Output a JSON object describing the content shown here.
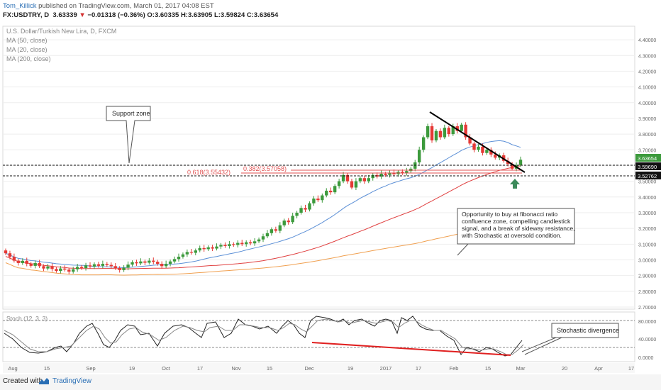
{
  "header": {
    "author": "Tom_Killick",
    "published": "published on TradingView.com, March 01, 2017 04:08 EST",
    "symbol": "FX:USDTRY, D",
    "last": "3.63339",
    "change_arrow": "▼",
    "change": "−0.01318 (−0.36%)",
    "ohlc": "O:3.60335 H:3.63905 L:3.59824 C:3.63654"
  },
  "legend": {
    "title": "U.S. Dollar/Turkish New Lira, D, FXCM",
    "items": [
      "MA (50, close)",
      "MA (20, close)",
      "MA (200, close)"
    ]
  },
  "annotations": {
    "support_zone": "Support zone",
    "fib_0618": "0.618(3.55432)",
    "fib_0382": "0.382(3.57058)",
    "opportunity": [
      "Opportunity to buy at fibonacci ratio",
      "confluence zone, compelling candlestick",
      "signal, and a break of sideway resistance,",
      "with Stochastic at oversold condition."
    ],
    "stoch_divergence": "Stochastic divergence",
    "stoch_label": "Stoch (12, 3, 3)"
  },
  "footer": {
    "created": "Created with",
    "brand": "TradingView"
  },
  "colors": {
    "up": "#3c9a3c",
    "down": "#e53935",
    "ma20": "#5b8fd6",
    "ma50": "#e04040",
    "ma200": "#f0a050",
    "stoch": "#333333",
    "divergence": "#e02020",
    "trend": "#000000"
  },
  "chart_data": {
    "type": "candlestick",
    "title": "U.S. Dollar/Turkish New Lira, D, FXCM",
    "y_ticks": [
      "2.70000",
      "2.80000",
      "2.90000",
      "3.00000",
      "3.10000",
      "3.20000",
      "3.30000",
      "3.40000",
      "3.50000",
      "3.60000",
      "3.70000",
      "3.80000",
      "3.90000",
      "4.00000",
      "4.10000",
      "4.20000",
      "4.30000",
      "4.40000"
    ],
    "ylim": [
      2.7,
      4.45
    ],
    "x_ticks": [
      "Aug",
      "15",
      "Sep",
      "19",
      "Oct",
      "17",
      "Nov",
      "15",
      "Dec",
      "19",
      "2017",
      "17",
      "Feb",
      "15",
      "Mar",
      "20",
      "Apr",
      "17"
    ],
    "price_labels": [
      {
        "value": "3.63654",
        "color": "#3c9a3c"
      },
      {
        "value": "3.59690",
        "color": "#111111"
      },
      {
        "value": "3.52762",
        "color": "#111111"
      }
    ],
    "support_levels": [
      3.5969,
      3.52762
    ],
    "fib_levels": [
      3.55432,
      3.57058
    ],
    "candles": [
      [
        3.06,
        3.042
      ],
      [
        3.042,
        3.02
      ],
      [
        3.02,
        2.995
      ],
      [
        2.995,
        2.98
      ],
      [
        2.98,
        2.994
      ],
      [
        2.994,
        2.975
      ],
      [
        2.975,
        2.962
      ],
      [
        2.962,
        2.98
      ],
      [
        2.98,
        2.96
      ],
      [
        2.96,
        2.945
      ],
      [
        2.945,
        2.958
      ],
      [
        2.958,
        2.942
      ],
      [
        2.942,
        2.93
      ],
      [
        2.93,
        2.945
      ],
      [
        2.945,
        2.938
      ],
      [
        2.938,
        2.925
      ],
      [
        2.925,
        2.94
      ],
      [
        2.94,
        2.955
      ],
      [
        2.955,
        2.948
      ],
      [
        2.948,
        2.965
      ],
      [
        2.965,
        2.958
      ],
      [
        2.958,
        2.972
      ],
      [
        2.972,
        2.962
      ],
      [
        2.962,
        2.975
      ],
      [
        2.975,
        2.968
      ],
      [
        2.968,
        2.96
      ],
      [
        2.96,
        2.948
      ],
      [
        2.948,
        2.935
      ],
      [
        2.935,
        2.95
      ],
      [
        2.95,
        2.97
      ],
      [
        2.97,
        2.985
      ],
      [
        2.985,
        2.978
      ],
      [
        2.978,
        2.99
      ],
      [
        2.99,
        2.982
      ],
      [
        2.982,
        2.995
      ],
      [
        2.995,
        2.988
      ],
      [
        2.988,
        2.975
      ],
      [
        2.975,
        2.96
      ],
      [
        2.96,
        2.975
      ],
      [
        2.975,
        2.99
      ],
      [
        2.99,
        3.005
      ],
      [
        3.005,
        3.02
      ],
      [
        3.02,
        3.035
      ],
      [
        3.035,
        3.05
      ],
      [
        3.05,
        3.045
      ],
      [
        3.045,
        3.06
      ],
      [
        3.06,
        3.075
      ],
      [
        3.075,
        3.068
      ],
      [
        3.068,
        3.08
      ],
      [
        3.08,
        3.072
      ],
      [
        3.072,
        3.085
      ],
      [
        3.085,
        3.095
      ],
      [
        3.095,
        3.088
      ],
      [
        3.088,
        3.1
      ],
      [
        3.1,
        3.095
      ],
      [
        3.095,
        3.108
      ],
      [
        3.108,
        3.1
      ],
      [
        3.1,
        3.112
      ],
      [
        3.112,
        3.105
      ],
      [
        3.105,
        3.118
      ],
      [
        3.118,
        3.13
      ],
      [
        3.13,
        3.15
      ],
      [
        3.15,
        3.17
      ],
      [
        3.17,
        3.195
      ],
      [
        3.195,
        3.185
      ],
      [
        3.185,
        3.22
      ],
      [
        3.22,
        3.25
      ],
      [
        3.25,
        3.24
      ],
      [
        3.24,
        3.28
      ],
      [
        3.28,
        3.3
      ],
      [
        3.3,
        3.33
      ],
      [
        3.33,
        3.32
      ],
      [
        3.32,
        3.36
      ],
      [
        3.36,
        3.39
      ],
      [
        3.39,
        3.38
      ],
      [
        3.38,
        3.41
      ],
      [
        3.41,
        3.44
      ],
      [
        3.44,
        3.43
      ],
      [
        3.43,
        3.47
      ],
      [
        3.47,
        3.5
      ],
      [
        3.5,
        3.54
      ],
      [
        3.54,
        3.5
      ],
      [
        3.5,
        3.46
      ],
      [
        3.46,
        3.5
      ],
      [
        3.5,
        3.52
      ],
      [
        3.52,
        3.5
      ],
      [
        3.5,
        3.52
      ],
      [
        3.52,
        3.54
      ],
      [
        3.54,
        3.53
      ],
      [
        3.53,
        3.548
      ],
      [
        3.548,
        3.54
      ],
      [
        3.54,
        3.555
      ],
      [
        3.555,
        3.545
      ],
      [
        3.545,
        3.56
      ],
      [
        3.56,
        3.552
      ],
      [
        3.552,
        3.565
      ],
      [
        3.565,
        3.58
      ],
      [
        3.58,
        3.62
      ],
      [
        3.62,
        3.7
      ],
      [
        3.7,
        3.78
      ],
      [
        3.78,
        3.85
      ],
      [
        3.85,
        3.76
      ],
      [
        3.76,
        3.82
      ],
      [
        3.82,
        3.78
      ],
      [
        3.78,
        3.84
      ],
      [
        3.84,
        3.8
      ],
      [
        3.8,
        3.85
      ],
      [
        3.85,
        3.82
      ],
      [
        3.82,
        3.86
      ],
      [
        3.86,
        3.78
      ],
      [
        3.78,
        3.74
      ],
      [
        3.74,
        3.7
      ],
      [
        3.7,
        3.72
      ],
      [
        3.72,
        3.68
      ],
      [
        3.68,
        3.7
      ],
      [
        3.7,
        3.67
      ],
      [
        3.67,
        3.65
      ],
      [
        3.65,
        3.665
      ],
      [
        3.665,
        3.63
      ],
      [
        3.63,
        3.61
      ],
      [
        3.61,
        3.58
      ],
      [
        3.58,
        3.603
      ],
      [
        3.603,
        3.637
      ]
    ],
    "stochastic": {
      "levels": [
        80,
        20
      ],
      "y_ticks": [
        "0.0000",
        "40.0000",
        "80.0000"
      ]
    }
  }
}
